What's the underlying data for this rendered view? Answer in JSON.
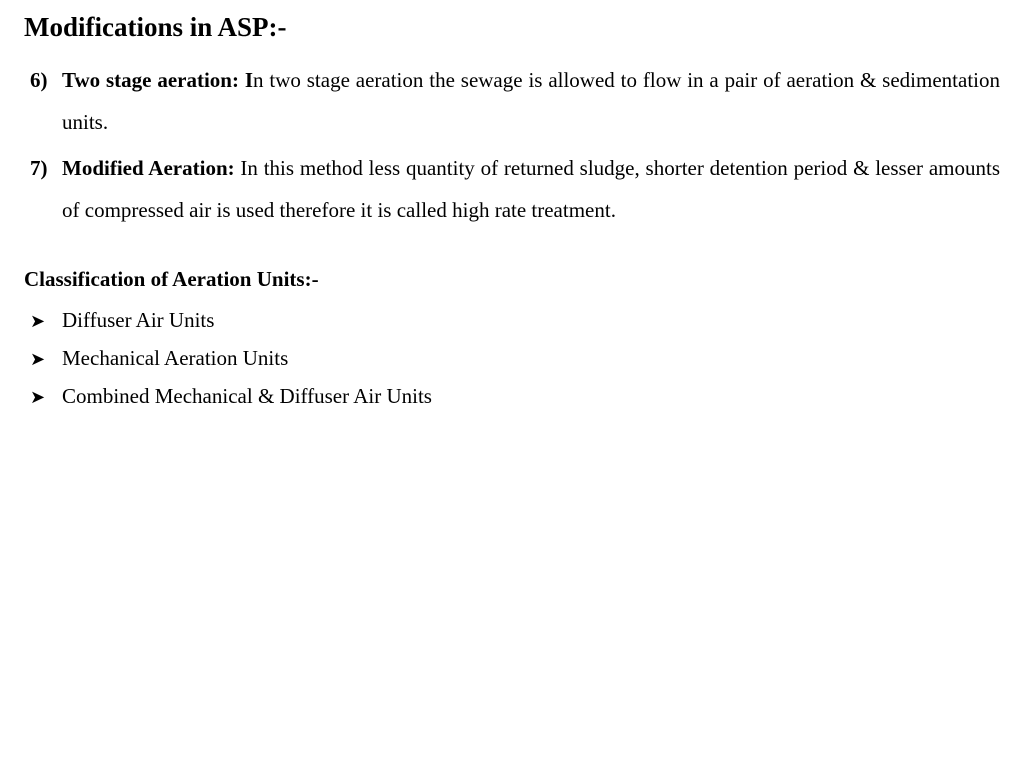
{
  "title": "Modifications in ASP:-",
  "numbered": [
    {
      "marker": "6)",
      "lead": "Two stage aeration: I",
      "rest": "n two stage aeration the sewage is allowed to flow in a pair of aeration & sedimentation units."
    },
    {
      "marker": "7)",
      "lead": "Modified Aeration: ",
      "rest": "In this method less quantity of returned sludge, shorter detention period & lesser amounts of compressed air is used therefore it is called high rate treatment."
    }
  ],
  "subheading": "Classification of Aeration Units:-",
  "bullets": [
    "Diffuser Air Units",
    "Mechanical Aeration Units",
    "Combined Mechanical & Diffuser Air Units"
  ],
  "bullet_glyph": "➤",
  "colors": {
    "text": "#000000",
    "background": "#ffffff"
  },
  "fonts": {
    "family": "Times New Roman",
    "title_size_pt": 20,
    "body_size_pt": 16
  }
}
